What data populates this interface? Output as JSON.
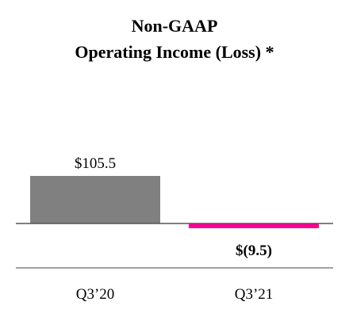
{
  "chart_data": {
    "type": "bar",
    "title_lines": [
      "Non-GAAP",
      "Operating Income (Loss) *"
    ],
    "categories": [
      "Q3’20",
      "Q3’21"
    ],
    "values": [
      105.5,
      -9.5
    ],
    "data_labels": [
      "$105.5",
      "$(9.5)"
    ],
    "colors": [
      "#808080",
      "#ff0095"
    ],
    "axis_color": "#808080",
    "xlabel": "",
    "ylabel": "",
    "grid": false,
    "legend": "none"
  }
}
